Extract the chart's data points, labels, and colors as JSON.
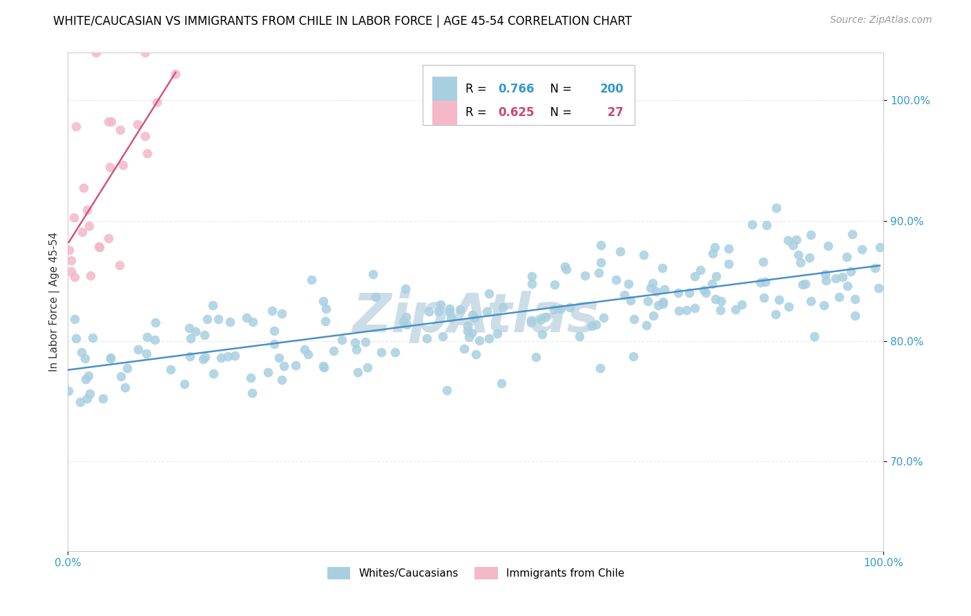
{
  "title": "WHITE/CAUCASIAN VS IMMIGRANTS FROM CHILE IN LABOR FORCE | AGE 45-54 CORRELATION CHART",
  "source": "Source: ZipAtlas.com",
  "ylabel": "In Labor Force | Age 45-54",
  "watermark": "ZipAtlas",
  "blue_R": 0.766,
  "blue_N": 200,
  "pink_R": 0.625,
  "pink_N": 27,
  "blue_color": "#a8cfe0",
  "pink_color": "#f4b8c8",
  "blue_line_color": "#4a90c4",
  "pink_line_color": "#d4547a",
  "blue_text_color": "#3399cc",
  "pink_text_color": "#cc4477",
  "xlim": [
    0.0,
    1.0
  ],
  "ylim": [
    0.625,
    1.04
  ],
  "x_ticks": [
    0.0,
    1.0
  ],
  "x_tick_labels": [
    "0.0%",
    "100.0%"
  ],
  "y_ticks": [
    0.7,
    0.8,
    0.9,
    1.0
  ],
  "legend_labels": [
    "Whites/Caucasians",
    "Immigrants from Chile"
  ],
  "title_fontsize": 12,
  "label_fontsize": 11,
  "tick_fontsize": 11,
  "source_fontsize": 10,
  "watermark_color": "#ccdde8",
  "background_color": "#ffffff",
  "grid_color": "#e8e8e8"
}
